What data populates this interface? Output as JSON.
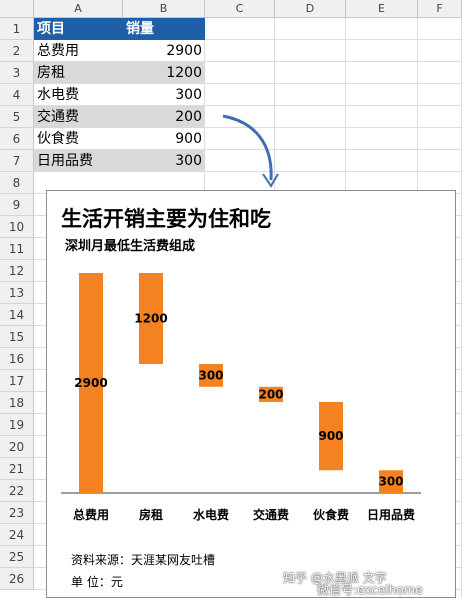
{
  "columns": [
    "A",
    "B",
    "C",
    "D",
    "E",
    "F"
  ],
  "rows": [
    "1",
    "2",
    "3",
    "4",
    "5",
    "6",
    "7",
    "8",
    "9",
    "10",
    "11",
    "12",
    "13",
    "14",
    "15",
    "16",
    "17",
    "18",
    "19",
    "20",
    "21",
    "22",
    "23",
    "24",
    "25",
    "26"
  ],
  "table": {
    "header": [
      "项目",
      "销量"
    ],
    "items": [
      {
        "name": "总费用",
        "value": "2900"
      },
      {
        "name": "房租",
        "value": "1200"
      },
      {
        "name": "水电费",
        "value": "300"
      },
      {
        "name": "交通费",
        "value": "200"
      },
      {
        "name": "伙食费",
        "value": "900"
      },
      {
        "name": "日用品费",
        "value": "300"
      }
    ]
  },
  "chart": {
    "title": "生活开销主要为住和吃",
    "subtitle": "深圳月最低生活费组成",
    "source": "资料来源：天涯某网友吐槽",
    "unit": "单      位：元",
    "bar_color": "#f58220"
  },
  "watermark": {
    "line1": "知乎 @水墨派 文字",
    "line2": "微信号:exceIhome"
  },
  "chart_data": {
    "type": "bar",
    "subtype": "waterfall",
    "categories": [
      "总费用",
      "房租",
      "水电费",
      "交通费",
      "伙食费",
      "日用品费"
    ],
    "values": [
      2900,
      1200,
      300,
      200,
      900,
      300
    ],
    "bases": [
      0,
      1700,
      1400,
      1200,
      300,
      0
    ],
    "data_labels": [
      "2900",
      "1200",
      "300",
      "200",
      "900",
      "300"
    ],
    "ylim": [
      0,
      2900
    ],
    "grid": false,
    "legend": "none"
  }
}
